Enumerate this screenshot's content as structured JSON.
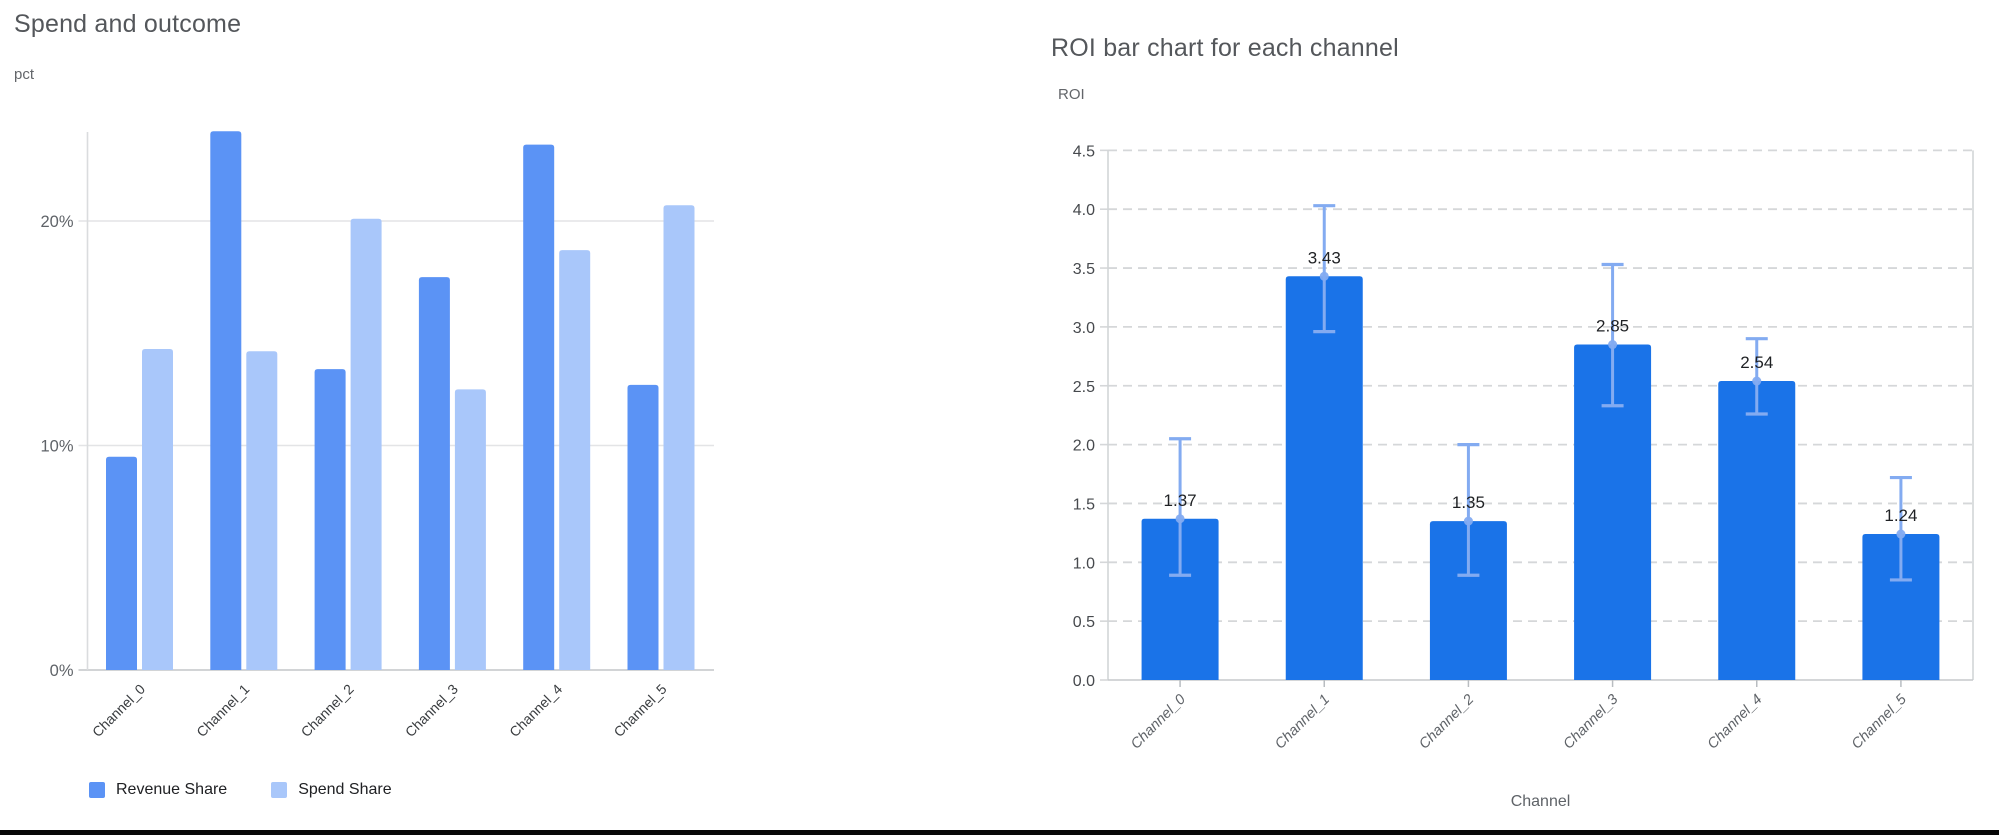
{
  "page": {
    "background": "#ffffff",
    "footer_rule_color": "#070707"
  },
  "chart_data": [
    {
      "type": "bar",
      "title": "Spend and outcome",
      "ylabel": "pct",
      "xlabel": "",
      "categories": [
        "Channel_0",
        "Channel_1",
        "Channel_2",
        "Channel_3",
        "Channel_4",
        "Channel_5"
      ],
      "series": [
        {
          "name": "Revenue Share",
          "color": "#5b93f5",
          "values": [
            9.5,
            24.0,
            13.4,
            17.5,
            23.4,
            12.7
          ]
        },
        {
          "name": "Spend Share",
          "color": "#a9c7fa",
          "values": [
            14.3,
            14.2,
            20.1,
            12.5,
            18.7,
            20.7
          ]
        }
      ],
      "y_ticks": [
        {
          "value": 0,
          "label": "0%"
        },
        {
          "value": 10,
          "label": "10%"
        },
        {
          "value": 20,
          "label": "20%"
        }
      ],
      "ylim": [
        0,
        24
      ],
      "grid": "solid",
      "legend_position": "bottom"
    },
    {
      "type": "bar",
      "title": "ROI bar chart for each channel",
      "ylabel": "ROI",
      "xlabel": "Channel",
      "categories": [
        "Channel_0",
        "Channel_1",
        "Channel_2",
        "Channel_3",
        "Channel_4",
        "Channel_5"
      ],
      "values": [
        1.37,
        3.43,
        1.35,
        2.85,
        2.54,
        1.24
      ],
      "bar_labels": [
        "1.37",
        "3.43",
        "1.35",
        "2.85",
        "2.54",
        "1.24"
      ],
      "error_low": [
        0.89,
        2.96,
        0.89,
        2.33,
        2.26,
        0.85
      ],
      "error_high": [
        2.05,
        4.03,
        2.0,
        3.53,
        2.9,
        1.72
      ],
      "bar_color": "#1a73e8",
      "error_color": "#83abf1",
      "y_ticks": [
        {
          "value": 0,
          "label": "0.0"
        },
        {
          "value": 0.5,
          "label": "0.5"
        },
        {
          "value": 1,
          "label": "1.0"
        },
        {
          "value": 1.5,
          "label": "1.5"
        },
        {
          "value": 2,
          "label": "2.0"
        },
        {
          "value": 2.5,
          "label": "2.5"
        },
        {
          "value": 3,
          "label": "3.0"
        },
        {
          "value": 3.5,
          "label": "3.5"
        },
        {
          "value": 4,
          "label": "4.0"
        },
        {
          "value": 4.5,
          "label": "4.5"
        }
      ],
      "ylim": [
        0,
        4.5
      ],
      "grid": "dashed",
      "legend_position": "none"
    }
  ]
}
